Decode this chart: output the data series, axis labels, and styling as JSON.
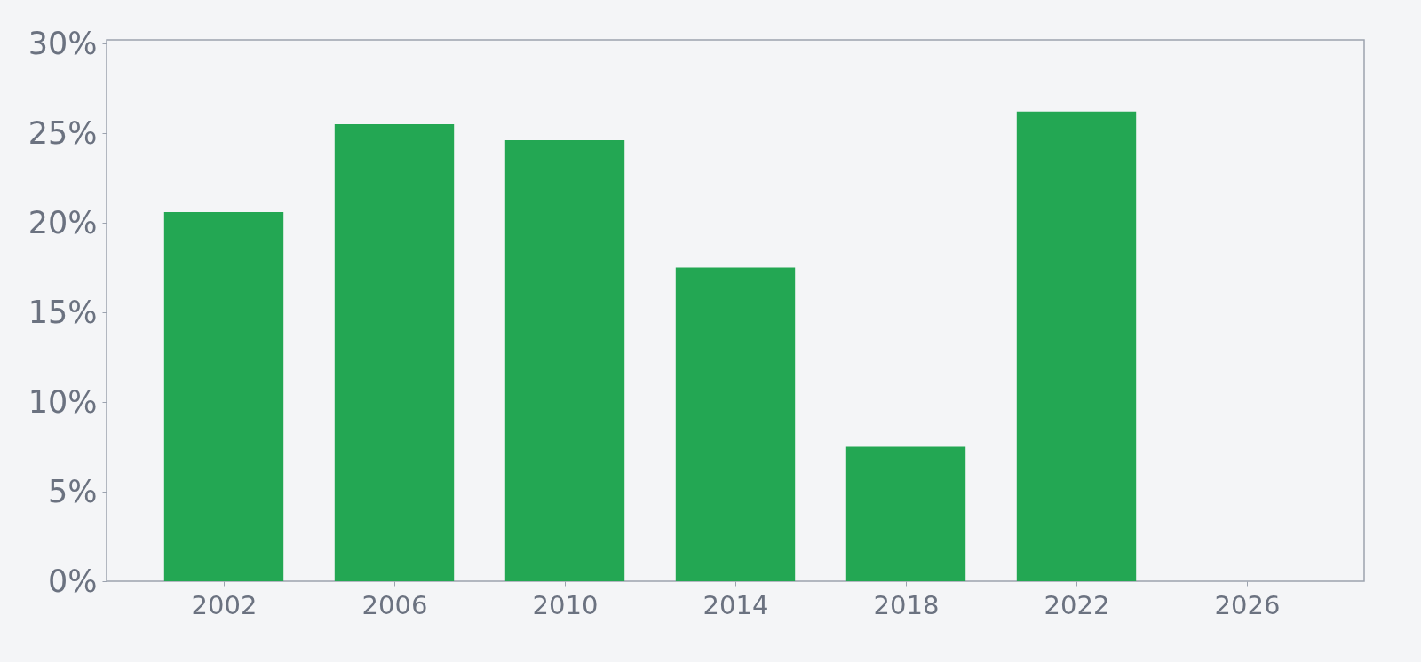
{
  "chart_data": {
    "type": "bar",
    "x": [
      2002,
      2006,
      2010,
      2014,
      2018,
      2022
    ],
    "values": [
      20.6,
      25.5,
      24.6,
      17.5,
      7.5,
      26.2
    ],
    "color": "#23a753",
    "xlim": [
      1999.25,
      2028.75
    ],
    "xticks": [
      2002,
      2006,
      2010,
      2014,
      2018,
      2022,
      2026
    ],
    "ylim": [
      0,
      30.2
    ],
    "yticks": [
      {
        "value": 0,
        "label": "0%"
      },
      {
        "value": 5,
        "label": "5%"
      },
      {
        "value": 10,
        "label": "10%"
      },
      {
        "value": 15,
        "label": "15%"
      },
      {
        "value": 20,
        "label": "20%"
      },
      {
        "value": 25,
        "label": "25%"
      },
      {
        "value": 30,
        "label": "30%"
      }
    ],
    "grid": false
  }
}
